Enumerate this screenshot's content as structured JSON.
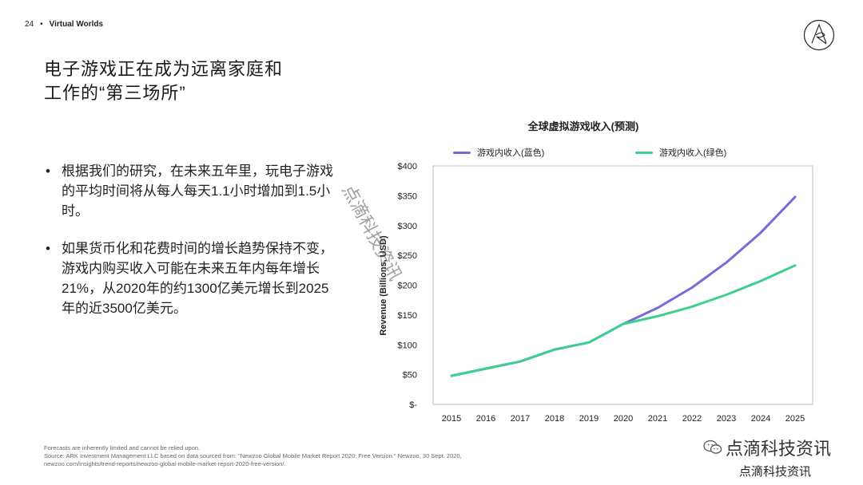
{
  "header": {
    "page_number": "24",
    "section": "Virtual Worlds"
  },
  "title_lines": [
    "电子游戏正在成为远离家庭和",
    "工作的“第三场所”"
  ],
  "bullets": [
    "根据我们的研究，在未来五年里，玩电子游戏的平均时间将从每人每天1.1小时增加到1.5小时。",
    "如果货币化和花费时间的增长趋势保持不变，游戏内购买收入可能在未来五年内每年增长21%，从2020年的约1300亿美元增长到2025年的近3500亿美元。"
  ],
  "legend": [
    {
      "label": "游戏内收入(蓝色)",
      "color": "#7b68d9"
    },
    {
      "label": "游戏内收入(绿色)",
      "color": "#3ecf8e"
    }
  ],
  "chart_data": {
    "type": "line",
    "title": "全球虚拟游戏收入(预测)",
    "xlabel": "",
    "ylabel": "Revenue (Billions, USD)",
    "x": [
      "2015",
      "2016",
      "2017",
      "2018",
      "2019",
      "2020",
      "2021",
      "2022",
      "2023",
      "2024",
      "2025"
    ],
    "yticks": [
      "$-",
      "$50",
      "$100",
      "$150",
      "$200",
      "$250",
      "$300",
      "$350",
      "$400"
    ],
    "ylim": [
      0,
      400
    ],
    "series": [
      {
        "name": "游戏内收入(蓝色)",
        "color": "#7b68d9",
        "x": [
          "2015",
          "2016",
          "2017",
          "2018",
          "2019",
          "2020",
          "2021",
          "2022",
          "2023",
          "2024",
          "2025"
        ],
        "values": [
          48,
          60,
          72,
          92,
          104,
          135,
          162,
          196,
          238,
          288,
          348
        ]
      },
      {
        "name": "游戏内收入(绿色)",
        "color": "#3ecf8e",
        "x": [
          "2015",
          "2016",
          "2017",
          "2018",
          "2019",
          "2020",
          "2021",
          "2022",
          "2023",
          "2024",
          "2025"
        ],
        "values": [
          48,
          60,
          72,
          92,
          104,
          135,
          148,
          164,
          184,
          207,
          233
        ]
      }
    ]
  },
  "footer_lines": [
    "Forecasts are inherently limited and cannot be relied upon.",
    "Source: ARK Investment Management LLC based on data sourced from: \"Newzoo Global Mobile Market Report 2020: Free Version.\" Newzoo, 30 Sept. 2020,",
    "newzoo.com/insights/trend-reports/newzoo-global-mobile-market-report-2020-free-version/."
  ],
  "watermarks": {
    "diagonal": "点滴科技资讯",
    "wechat": "点滴科技资讯",
    "bottom": "点滴科技资讯"
  }
}
